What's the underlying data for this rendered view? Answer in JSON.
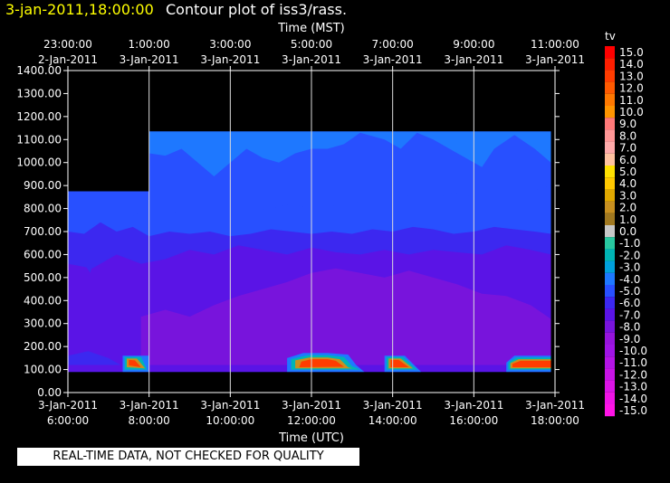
{
  "header": {
    "date_label": "3-jan-2011,18:00:00",
    "title": "Contour plot of iss3/rass."
  },
  "note": "REAL-TIME DATA, NOT CHECKED FOR QUALITY",
  "chart_data": {
    "type": "heatmap",
    "top_axis_label": "Time (MST)",
    "bottom_axis_label": "Time (UTC)",
    "top_ticks": [
      {
        "time": "23:00:00",
        "date": "2-Jan-2011"
      },
      {
        "time": "1:00:00",
        "date": "3-Jan-2011"
      },
      {
        "time": "3:00:00",
        "date": "3-Jan-2011"
      },
      {
        "time": "5:00:00",
        "date": "3-Jan-2011"
      },
      {
        "time": "7:00:00",
        "date": "3-Jan-2011"
      },
      {
        "time": "9:00:00",
        "date": "3-Jan-2011"
      },
      {
        "time": "11:00:00",
        "date": "3-Jan-2011"
      }
    ],
    "bottom_ticks": [
      {
        "date": "3-Jan-2011",
        "time": "6:00:00"
      },
      {
        "date": "3-Jan-2011",
        "time": "8:00:00"
      },
      {
        "date": "3-Jan-2011",
        "time": "10:00:00"
      },
      {
        "date": "3-Jan-2011",
        "time": "12:00:00"
      },
      {
        "date": "3-Jan-2011",
        "time": "14:00:00"
      },
      {
        "date": "3-Jan-2011",
        "time": "16:00:00"
      },
      {
        "date": "3-Jan-2011",
        "time": "18:00:00"
      }
    ],
    "x_range_utc_hours": [
      6,
      18
    ],
    "ylim": [
      0,
      1400
    ],
    "y_ticks": [
      "1400.00",
      "1300.00",
      "1200.00",
      "1100.00",
      "1000.00",
      "900.00",
      "800.00",
      "700.00",
      "600.00",
      "500.00",
      "400.00",
      "300.00",
      "200.00",
      "100.00",
      "0.00"
    ],
    "grid": true,
    "legend_title": "tv",
    "legend_placement": "right",
    "colorbar_levels": [
      "15.0",
      "14.0",
      "13.0",
      "12.0",
      "11.0",
      "10.0",
      "9.0",
      "8.0",
      "7.0",
      "6.0",
      "5.0",
      "4.0",
      "3.0",
      "2.0",
      "1.0",
      "0.0",
      "-1.0",
      "-2.0",
      "-3.0",
      "-4.0",
      "-5.0",
      "-6.0",
      "-7.0",
      "-8.0",
      "-9.0",
      "-10.0",
      "-11.0",
      "-12.0",
      "-13.0",
      "-14.0",
      "-15.0"
    ],
    "colorbar_colors": [
      "#ff0000",
      "#ff1e00",
      "#ff3c00",
      "#ff5a00",
      "#ff7800",
      "#ff9400",
      "#ff7878",
      "#ff9696",
      "#ffaaaa",
      "#ffc2a0",
      "#ffe000",
      "#ffc800",
      "#e0a800",
      "#c89020",
      "#a07820",
      "#c8c8c8",
      "#28c8a0",
      "#00b4b4",
      "#00a0dc",
      "#1e78ff",
      "#2850ff",
      "#3c28f0",
      "#5a14e6",
      "#7814dc",
      "#9614dc",
      "#a014e6",
      "#b414e6",
      "#c814e6",
      "#dc14e6",
      "#f014e6",
      "#ff14e6"
    ],
    "data_region": [
      {
        "x_start": 6.0,
        "x_end": 8.0,
        "y_max": 875
      },
      {
        "x_start": 8.0,
        "x_end": 17.9,
        "y_max": 1135
      }
    ],
    "y_min_data": 90,
    "layers": [
      {
        "level": -5.5,
        "polygon": [
          [
            6.0,
            850
          ],
          [
            6.2,
            875
          ],
          [
            8.0,
            875
          ],
          [
            8.0,
            1135
          ],
          [
            17.9,
            1135
          ],
          [
            17.9,
            900
          ],
          [
            17.5,
            880
          ],
          [
            17.0,
            860
          ],
          [
            16.5,
            870
          ],
          [
            16.0,
            850
          ],
          [
            15.5,
            870
          ],
          [
            15.0,
            840
          ],
          [
            14.5,
            860
          ],
          [
            14.0,
            840
          ],
          [
            13.5,
            820
          ],
          [
            13.0,
            830
          ],
          [
            12.5,
            810
          ],
          [
            12.0,
            800
          ],
          [
            11.5,
            820
          ],
          [
            11.0,
            800
          ],
          [
            10.5,
            790
          ],
          [
            10.0,
            780
          ],
          [
            9.5,
            780
          ],
          [
            9.0,
            770
          ],
          [
            8.5,
            790
          ],
          [
            8.0,
            800
          ],
          [
            7.5,
            760
          ],
          [
            7.0,
            770
          ],
          [
            6.5,
            710
          ],
          [
            6.0,
            720
          ]
        ]
      },
      {
        "level": -4.5,
        "polygon": [
          [
            8.0,
            1135
          ],
          [
            17.9,
            1135
          ],
          [
            17.9,
            1000
          ],
          [
            17.5,
            1060
          ],
          [
            17.0,
            1120
          ],
          [
            16.5,
            1060
          ],
          [
            16.2,
            980
          ],
          [
            15.8,
            1020
          ],
          [
            15.4,
            1060
          ],
          [
            15.0,
            1100
          ],
          [
            14.6,
            1130
          ],
          [
            14.2,
            1060
          ],
          [
            13.8,
            1100
          ],
          [
            13.2,
            1130
          ],
          [
            12.8,
            1080
          ],
          [
            12.4,
            1060
          ],
          [
            12.0,
            1060
          ],
          [
            11.6,
            1040
          ],
          [
            11.2,
            1000
          ],
          [
            10.8,
            1020
          ],
          [
            10.4,
            1060
          ],
          [
            10.0,
            1000
          ],
          [
            9.6,
            940
          ],
          [
            9.2,
            1000
          ],
          [
            8.8,
            1060
          ],
          [
            8.4,
            1030
          ],
          [
            8.0,
            1040
          ]
        ]
      },
      {
        "level": -6.5,
        "polygon": [
          [
            6.0,
            700
          ],
          [
            6.4,
            690
          ],
          [
            6.8,
            740
          ],
          [
            7.2,
            700
          ],
          [
            7.6,
            720
          ],
          [
            8.0,
            680
          ],
          [
            8.5,
            700
          ],
          [
            9.0,
            690
          ],
          [
            9.5,
            700
          ],
          [
            10.0,
            680
          ],
          [
            10.5,
            690
          ],
          [
            11.0,
            710
          ],
          [
            11.5,
            700
          ],
          [
            12.0,
            690
          ],
          [
            12.5,
            700
          ],
          [
            13.0,
            690
          ],
          [
            13.5,
            710
          ],
          [
            14.0,
            700
          ],
          [
            14.5,
            720
          ],
          [
            15.0,
            710
          ],
          [
            15.5,
            690
          ],
          [
            16.0,
            700
          ],
          [
            16.5,
            720
          ],
          [
            17.0,
            710
          ],
          [
            17.5,
            700
          ],
          [
            17.9,
            690
          ],
          [
            17.9,
            90
          ],
          [
            6.0,
            90
          ]
        ]
      },
      {
        "level": -7.5,
        "polygon": [
          [
            6.0,
            560
          ],
          [
            6.6,
            540
          ],
          [
            7.2,
            600
          ],
          [
            7.8,
            560
          ],
          [
            8.4,
            580
          ],
          [
            9.0,
            620
          ],
          [
            9.6,
            600
          ],
          [
            10.2,
            640
          ],
          [
            10.8,
            620
          ],
          [
            11.4,
            600
          ],
          [
            12.0,
            630
          ],
          [
            12.6,
            610
          ],
          [
            13.2,
            600
          ],
          [
            13.8,
            620
          ],
          [
            14.4,
            600
          ],
          [
            15.0,
            620
          ],
          [
            15.6,
            610
          ],
          [
            16.2,
            600
          ],
          [
            16.8,
            640
          ],
          [
            17.4,
            620
          ],
          [
            17.9,
            600
          ],
          [
            17.9,
            90
          ],
          [
            6.0,
            90
          ]
        ]
      },
      {
        "level": -8.5,
        "polygon": [
          [
            7.8,
            330
          ],
          [
            8.4,
            360
          ],
          [
            9.0,
            330
          ],
          [
            9.6,
            380
          ],
          [
            10.2,
            420
          ],
          [
            10.8,
            450
          ],
          [
            11.4,
            480
          ],
          [
            12.0,
            520
          ],
          [
            12.6,
            540
          ],
          [
            13.2,
            520
          ],
          [
            13.8,
            500
          ],
          [
            14.4,
            530
          ],
          [
            15.0,
            500
          ],
          [
            15.6,
            470
          ],
          [
            16.2,
            430
          ],
          [
            16.8,
            420
          ],
          [
            17.4,
            380
          ],
          [
            17.9,
            320
          ],
          [
            17.9,
            120
          ],
          [
            7.8,
            120
          ]
        ]
      },
      {
        "level": -6.0,
        "polygon": [
          [
            6.4,
            560
          ],
          [
            6.55,
            630
          ],
          [
            6.65,
            580
          ],
          [
            6.55,
            520
          ]
        ]
      },
      {
        "level": -6.5,
        "polygon": [
          [
            6.0,
            160
          ],
          [
            6.5,
            180
          ],
          [
            7.0,
            150
          ],
          [
            7.3,
            120
          ],
          [
            6.0,
            120
          ]
        ]
      },
      {
        "level": -4.0,
        "polygon": [
          [
            7.35,
            90
          ],
          [
            7.35,
            160
          ],
          [
            8.0,
            160
          ],
          [
            8.0,
            90
          ]
        ]
      },
      {
        "level": -2.5,
        "polygon": [
          [
            7.4,
            100
          ],
          [
            7.4,
            155
          ],
          [
            7.8,
            155
          ],
          [
            7.95,
            100
          ]
        ]
      },
      {
        "level": 2.0,
        "polygon": [
          [
            7.45,
            110
          ],
          [
            7.45,
            148
          ],
          [
            7.7,
            148
          ],
          [
            7.9,
            105
          ]
        ]
      },
      {
        "level": 13.0,
        "polygon": [
          [
            7.5,
            118
          ],
          [
            7.5,
            142
          ],
          [
            7.65,
            140
          ],
          [
            7.8,
            110
          ]
        ]
      },
      {
        "level": -4.0,
        "polygon": [
          [
            11.4,
            90
          ],
          [
            11.4,
            150
          ],
          [
            11.8,
            172
          ],
          [
            12.4,
            172
          ],
          [
            12.9,
            165
          ],
          [
            13.1,
            120
          ],
          [
            13.3,
            90
          ]
        ]
      },
      {
        "level": -2.5,
        "polygon": [
          [
            11.5,
            100
          ],
          [
            11.5,
            145
          ],
          [
            11.9,
            162
          ],
          [
            12.4,
            162
          ],
          [
            12.8,
            155
          ],
          [
            13.0,
            115
          ],
          [
            13.2,
            100
          ]
        ]
      },
      {
        "level": 2.0,
        "polygon": [
          [
            11.6,
            105
          ],
          [
            11.6,
            140
          ],
          [
            11.95,
            152
          ],
          [
            12.4,
            152
          ],
          [
            12.7,
            145
          ],
          [
            12.9,
            110
          ],
          [
            13.0,
            105
          ]
        ]
      },
      {
        "level": 13.0,
        "polygon": [
          [
            11.7,
            110
          ],
          [
            11.75,
            135
          ],
          [
            12.0,
            145
          ],
          [
            12.4,
            145
          ],
          [
            12.6,
            138
          ],
          [
            12.8,
            112
          ]
        ]
      },
      {
        "level": -4.0,
        "polygon": [
          [
            13.8,
            90
          ],
          [
            13.8,
            160
          ],
          [
            14.3,
            160
          ],
          [
            14.7,
            90
          ]
        ]
      },
      {
        "level": -2.5,
        "polygon": [
          [
            13.85,
            100
          ],
          [
            13.85,
            155
          ],
          [
            14.25,
            155
          ],
          [
            14.6,
            100
          ]
        ]
      },
      {
        "level": 2.0,
        "polygon": [
          [
            13.9,
            105
          ],
          [
            13.9,
            148
          ],
          [
            14.2,
            148
          ],
          [
            14.5,
            105
          ]
        ]
      },
      {
        "level": 13.0,
        "polygon": [
          [
            13.95,
            110
          ],
          [
            13.95,
            142
          ],
          [
            14.15,
            142
          ],
          [
            14.4,
            110
          ]
        ]
      },
      {
        "level": -4.0,
        "polygon": [
          [
            16.8,
            90
          ],
          [
            16.8,
            130
          ],
          [
            17.0,
            160
          ],
          [
            17.9,
            160
          ],
          [
            17.9,
            90
          ]
        ]
      },
      {
        "level": -2.5,
        "polygon": [
          [
            16.85,
            100
          ],
          [
            16.85,
            130
          ],
          [
            17.05,
            152
          ],
          [
            17.9,
            152
          ],
          [
            17.9,
            100
          ]
        ]
      },
      {
        "level": 2.0,
        "polygon": [
          [
            16.9,
            105
          ],
          [
            16.9,
            128
          ],
          [
            17.1,
            145
          ],
          [
            17.9,
            145
          ],
          [
            17.9,
            105
          ]
        ]
      },
      {
        "level": 13.0,
        "polygon": [
          [
            16.95,
            110
          ],
          [
            16.95,
            125
          ],
          [
            17.15,
            138
          ],
          [
            17.9,
            138
          ],
          [
            17.9,
            110
          ]
        ]
      }
    ]
  }
}
